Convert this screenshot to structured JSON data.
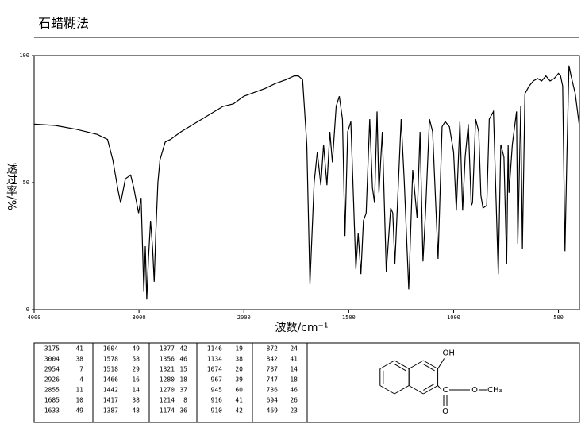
{
  "chart_data": {
    "type": "line",
    "title": "石蜡糊法",
    "x_label": "波数/cm⁻¹",
    "y_label": "透过率/%",
    "x": [
      4000,
      3800,
      3600,
      3400,
      3300,
      3250,
      3200,
      3175,
      3130,
      3080,
      3050,
      3004,
      2980,
      2954,
      2940,
      2926,
      2910,
      2890,
      2870,
      2855,
      2840,
      2820,
      2800,
      2750,
      2700,
      2600,
      2400,
      2200,
      2100,
      2000,
      1900,
      1850,
      1800,
      1760,
      1740,
      1720,
      1700,
      1685,
      1665,
      1650,
      1633,
      1620,
      1604,
      1590,
      1578,
      1560,
      1545,
      1530,
      1518,
      1505,
      1490,
      1466,
      1455,
      1442,
      1430,
      1417,
      1400,
      1387,
      1377,
      1365,
      1356,
      1340,
      1321,
      1300,
      1290,
      1280,
      1270,
      1250,
      1235,
      1214,
      1195,
      1174,
      1160,
      1146,
      1134,
      1115,
      1100,
      1074,
      1055,
      1040,
      1020,
      1000,
      987,
      970,
      957,
      945,
      930,
      916,
      910,
      895,
      880,
      870,
      860,
      842,
      830,
      810,
      787,
      775,
      760,
      747,
      740,
      736,
      720,
      700,
      694,
      680,
      672,
      660,
      640,
      620,
      600,
      580,
      560,
      540,
      520,
      500,
      490,
      480,
      469,
      460,
      450,
      440,
      420,
      400
    ],
    "values": [
      73,
      72.5,
      71,
      69,
      67,
      59,
      47,
      42,
      51.5,
      53,
      48,
      38,
      44,
      7,
      25,
      4,
      20,
      35,
      24,
      11,
      30,
      50,
      59,
      66,
      67,
      70,
      75,
      80,
      81,
      84,
      87,
      89,
      90.5,
      92,
      92,
      90.5,
      65,
      10,
      50,
      62,
      49,
      65,
      49,
      70,
      58,
      80,
      84,
      75,
      29,
      70,
      74,
      16,
      30,
      14,
      35,
      38,
      75,
      48,
      42,
      78,
      46,
      70,
      15,
      40,
      38,
      18,
      37,
      75,
      50,
      8,
      55,
      36,
      70,
      19,
      38,
      75,
      70,
      20,
      72,
      74,
      72,
      62,
      39,
      74,
      39,
      60,
      73,
      41,
      42,
      75,
      70,
      45,
      40,
      41,
      75,
      78,
      14,
      65,
      60,
      18,
      65,
      46,
      65,
      78,
      26,
      80,
      24,
      85,
      88,
      90,
      91,
      90,
      92,
      90,
      91,
      93,
      92,
      88,
      23,
      60,
      96,
      92,
      85,
      72
    ],
    "color": "#000000",
    "xlim": [
      4000,
      400
    ],
    "xticks": [
      4000,
      3000,
      2000,
      1500,
      1000,
      500
    ],
    "ylim": [
      0,
      100
    ],
    "yticks": [
      0,
      50,
      100
    ]
  },
  "peak_table": {
    "columns": [
      [
        [
          3175,
          41
        ],
        [
          3004,
          38
        ],
        [
          2954,
          7
        ],
        [
          2926,
          4
        ],
        [
          2855,
          11
        ],
        [
          1685,
          10
        ],
        [
          1633,
          49
        ]
      ],
      [
        [
          1604,
          49
        ],
        [
          1578,
          58
        ],
        [
          1518,
          29
        ],
        [
          1466,
          16
        ],
        [
          1442,
          14
        ],
        [
          1417,
          38
        ],
        [
          1387,
          48
        ]
      ],
      [
        [
          1377,
          42
        ],
        [
          1356,
          46
        ],
        [
          1321,
          15
        ],
        [
          1280,
          18
        ],
        [
          1270,
          37
        ],
        [
          1214,
          8
        ],
        [
          1174,
          36
        ]
      ],
      [
        [
          1146,
          19
        ],
        [
          1134,
          38
        ],
        [
          1074,
          20
        ],
        [
          967,
          39
        ],
        [
          945,
          60
        ],
        [
          916,
          41
        ],
        [
          910,
          42
        ]
      ],
      [
        [
          872,
          24
        ],
        [
          842,
          41
        ],
        [
          787,
          14
        ],
        [
          747,
          18
        ],
        [
          736,
          46
        ],
        [
          694,
          26
        ],
        [
          469,
          23
        ]
      ]
    ]
  },
  "structure": {
    "labels": [
      "OH",
      "C",
      "O",
      "CH₃",
      "O"
    ]
  }
}
